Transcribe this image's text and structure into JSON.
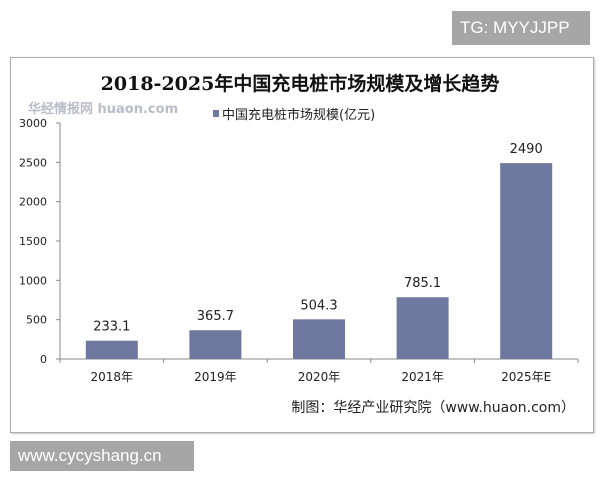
{
  "watermarks": {
    "top": "TG: MYYJJPP",
    "bottom": "www.cycyshang.cn",
    "logo": "华经情报网 huaon.com"
  },
  "chart_data": {
    "type": "bar",
    "title": "2018-2025年中国充电桩市场规模及增长趋势",
    "categories": [
      "2018年",
      "2019年",
      "2020年",
      "2021年",
      "2025年E"
    ],
    "series": [
      {
        "name": "中国充电桩市场规模(亿元)",
        "values": [
          233.1,
          365.7,
          504.3,
          785.1,
          2490
        ],
        "color": "#6e789e"
      }
    ],
    "data_labels": [
      "233.1",
      "365.7",
      "504.3",
      "785.1",
      "2490"
    ],
    "ylim": [
      0,
      3000
    ],
    "yticks": [
      "0",
      "500",
      "1000",
      "1500",
      "2000",
      "2500",
      "3000"
    ],
    "grid": false,
    "legend": "top",
    "source": "制图：华经产业研究院（www.huaon.com）"
  }
}
